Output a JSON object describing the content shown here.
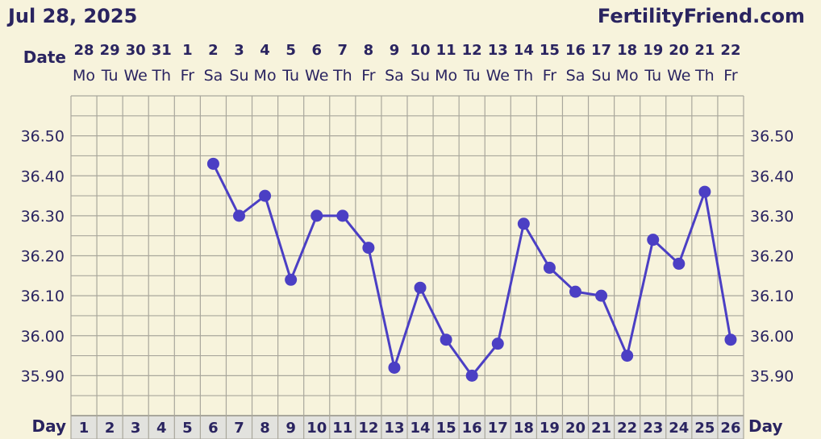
{
  "header": {
    "date": "Jul 28, 2025",
    "brand": "FertilityFriend.com"
  },
  "labels": {
    "date_row": "Date",
    "day_row": "Day"
  },
  "colors": {
    "background": "#f7f3dc",
    "grid": "#a9a79c",
    "series": "#4b3fc4",
    "text": "#2a2460",
    "day_row_bg": "#e2e2de"
  },
  "chart_data": {
    "type": "line",
    "xlabel": "Day",
    "dates": [
      "28",
      "29",
      "30",
      "31",
      "1",
      "2",
      "3",
      "4",
      "5",
      "6",
      "7",
      "8",
      "9",
      "10",
      "11",
      "12",
      "13",
      "14",
      "15",
      "16",
      "17",
      "18",
      "19",
      "20",
      "21",
      "22"
    ],
    "weekdays": [
      "Mo",
      "Tu",
      "We",
      "Th",
      "Fr",
      "Sa",
      "Su",
      "Mo",
      "Tu",
      "We",
      "Th",
      "Fr",
      "Sa",
      "Su",
      "Mo",
      "Tu",
      "We",
      "Th",
      "Fr",
      "Sa",
      "Su",
      "Mo",
      "Tu",
      "We",
      "Th",
      "Fr"
    ],
    "days": [
      1,
      2,
      3,
      4,
      5,
      6,
      7,
      8,
      9,
      10,
      11,
      12,
      13,
      14,
      15,
      16,
      17,
      18,
      19,
      20,
      21,
      22,
      23,
      24,
      25,
      26
    ],
    "y_ticks": [
      "36.50",
      "36.40",
      "36.30",
      "36.20",
      "36.10",
      "36.00",
      "35.90"
    ],
    "ylim": [
      35.8,
      36.6
    ],
    "grid": true,
    "series": [
      {
        "x": [
          6,
          7,
          8,
          9,
          10,
          11,
          12,
          13,
          14,
          15,
          16,
          17,
          18,
          19,
          20,
          21,
          22,
          23,
          24,
          25,
          26
        ],
        "values": [
          36.43,
          36.3,
          36.35,
          36.14,
          36.3,
          36.3,
          36.22,
          35.92,
          36.12,
          35.99,
          35.9,
          35.98,
          36.28,
          36.17,
          36.11,
          36.1,
          35.95,
          36.24,
          36.18,
          36.36,
          35.99
        ]
      }
    ]
  }
}
